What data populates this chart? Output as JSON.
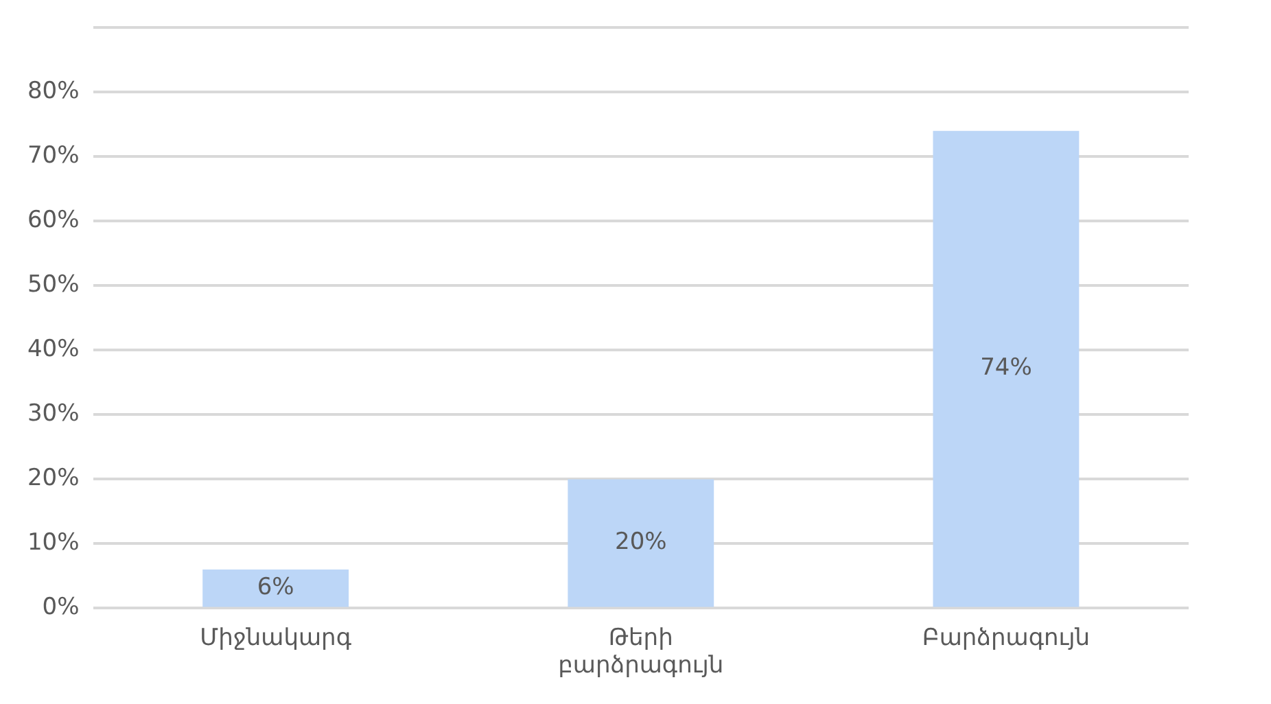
{
  "chart_data": {
    "type": "bar",
    "categories": [
      "Միջնակարգ",
      "Թերի բարձրագույն",
      "Բարձրագույն"
    ],
    "values": [
      6,
      20,
      74
    ],
    "value_labels": [
      "6%",
      "20%",
      "74%"
    ],
    "color": "#bcd6f7",
    "ylim": [
      0,
      90
    ],
    "yticks": [
      {
        "value": 0,
        "label": "0%"
      },
      {
        "value": 10,
        "label": "10%"
      },
      {
        "value": 20,
        "label": "20%"
      },
      {
        "value": 30,
        "label": "30%"
      },
      {
        "value": 40,
        "label": "40%"
      },
      {
        "value": 50,
        "label": "50%"
      },
      {
        "value": 60,
        "label": "60%"
      },
      {
        "value": 70,
        "label": "70%"
      },
      {
        "value": 80,
        "label": "80%"
      },
      {
        "value": 90,
        "label": null
      }
    ],
    "grid": "y"
  }
}
